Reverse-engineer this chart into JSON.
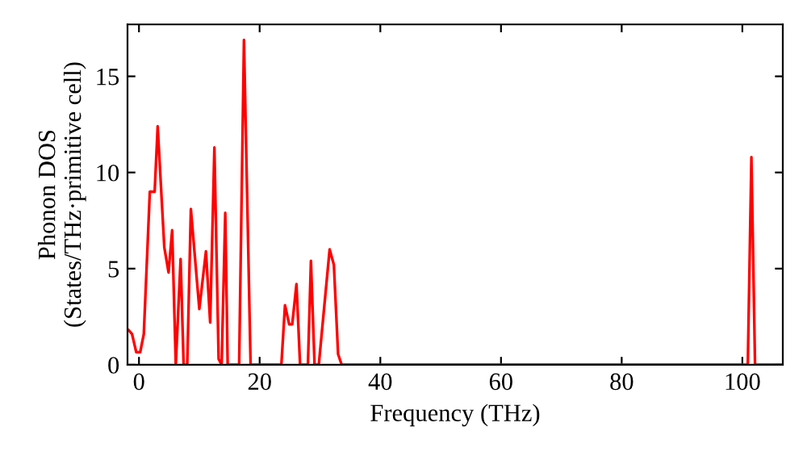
{
  "chart_data": {
    "type": "line",
    "xlabel": "Frequency (THz)",
    "ylabel": "Phonon DOS\n(States/THz·primitive cell)",
    "xlim": [
      -1.9,
      106.7
    ],
    "ylim": [
      0,
      17.7
    ],
    "xticks": [
      0,
      20,
      40,
      60,
      80,
      100
    ],
    "yticks": [
      0,
      5,
      10,
      15
    ],
    "grid": false,
    "legend": false,
    "marker": "none",
    "line_style": "solid",
    "series": [
      {
        "color": "#ff0000",
        "x": [
          -1.7,
          -1.15,
          -0.45,
          0.2,
          0.8,
          1.8,
          2.6,
          3.1,
          4.2,
          4.9,
          5.5,
          6.1,
          6.9,
          7.4,
          8.0,
          8.6,
          10.0,
          11.1,
          11.8,
          12.5,
          13.2,
          13.7,
          14.3,
          14.7,
          16.6,
          17.4,
          18.5,
          23.6,
          24.2,
          24.9,
          25.4,
          26.1,
          26.7,
          28.0,
          28.5,
          29.1,
          29.8,
          31.6,
          32.3,
          33.0,
          33.6,
          100.9,
          101.5,
          102.1,
          106.5
        ],
        "values": [
          1.8,
          1.6,
          0.65,
          0.65,
          1.6,
          9.0,
          9.0,
          12.4,
          6.1,
          4.8,
          7.0,
          0,
          5.5,
          0,
          0,
          8.1,
          2.9,
          5.9,
          2.2,
          11.3,
          0.3,
          0,
          7.9,
          0,
          0,
          16.9,
          0,
          0,
          3.1,
          2.1,
          2.1,
          4.2,
          0,
          0,
          5.4,
          0,
          0,
          6.0,
          5.2,
          0.55,
          0,
          0,
          10.8,
          0,
          0
        ]
      }
    ]
  }
}
